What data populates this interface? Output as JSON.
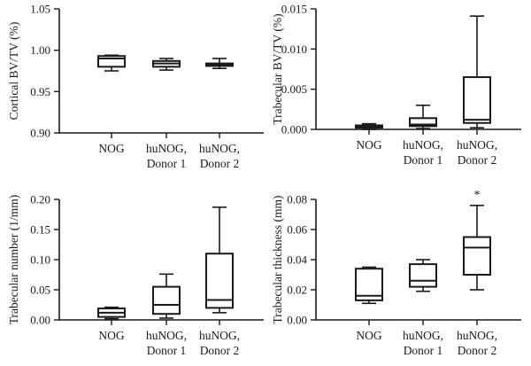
{
  "chart_data": [
    {
      "type": "box",
      "ylabel": "Cortical BV/TV (%)",
      "ylim": [
        0.9,
        1.05
      ],
      "yticks": [
        "0.90",
        "0.95",
        "1.00",
        "1.05"
      ],
      "ytick_values": [
        0.9,
        0.95,
        1.0,
        1.05
      ],
      "categories": [
        [
          "NOG"
        ],
        [
          "huNOG,",
          "Donor 1"
        ],
        [
          "huNOG,",
          "Donor 2"
        ]
      ],
      "boxes": [
        {
          "min": 0.975,
          "q1": 0.98,
          "median": 0.99,
          "q3": 0.993,
          "max": 0.994
        },
        {
          "min": 0.976,
          "q1": 0.98,
          "median": 0.984,
          "q3": 0.987,
          "max": 0.99
        },
        {
          "min": 0.978,
          "q1": 0.981,
          "median": 0.983,
          "q3": 0.984,
          "max": 0.99
        }
      ],
      "annotations": []
    },
    {
      "type": "box",
      "ylabel": "Trabecular BV/TV (%)",
      "ylim": [
        0.0,
        0.015
      ],
      "yticks": [
        "0.000",
        "0.005",
        "0.010",
        "0.015"
      ],
      "ytick_values": [
        0.0,
        0.005,
        0.01,
        0.015
      ],
      "categories": [
        [
          "NOG"
        ],
        [
          "huNOG,",
          "Donor 1"
        ],
        [
          "huNOG,",
          "Donor 2"
        ]
      ],
      "boxes": [
        {
          "min": 0.0,
          "q1": 0.0002,
          "median": 0.0003,
          "q3": 0.0005,
          "max": 0.0007
        },
        {
          "min": 0.0001,
          "q1": 0.0004,
          "median": 0.0006,
          "q3": 0.0014,
          "max": 0.003
        },
        {
          "min": 0.0002,
          "q1": 0.0008,
          "median": 0.0012,
          "q3": 0.0065,
          "max": 0.0141
        }
      ],
      "annotations": []
    },
    {
      "type": "box",
      "ylabel": "Trabecular number (1/mm)",
      "ylim": [
        0.0,
        0.2
      ],
      "yticks": [
        "0.00",
        "0.05",
        "0.10",
        "0.15",
        "0.20"
      ],
      "ytick_values": [
        0.0,
        0.05,
        0.1,
        0.15,
        0.2
      ],
      "categories": [
        [
          "NOG"
        ],
        [
          "huNOG,",
          "Donor 1"
        ],
        [
          "huNOG,",
          "Donor 2"
        ]
      ],
      "boxes": [
        {
          "min": 0.002,
          "q1": 0.005,
          "median": 0.012,
          "q3": 0.019,
          "max": 0.021
        },
        {
          "min": 0.003,
          "q1": 0.01,
          "median": 0.025,
          "q3": 0.055,
          "max": 0.076
        },
        {
          "min": 0.012,
          "q1": 0.02,
          "median": 0.033,
          "q3": 0.11,
          "max": 0.187
        }
      ],
      "annotations": []
    },
    {
      "type": "box",
      "ylabel": "Trabecular thickness (mm)",
      "ylim": [
        0.0,
        0.08
      ],
      "yticks": [
        "0.00",
        "0.02",
        "0.04",
        "0.06",
        "0.08"
      ],
      "ytick_values": [
        0.0,
        0.02,
        0.04,
        0.06,
        0.08
      ],
      "categories": [
        [
          "NOG"
        ],
        [
          "huNOG,",
          "Donor 1"
        ],
        [
          "huNOG,",
          "Donor 2"
        ]
      ],
      "boxes": [
        {
          "min": 0.011,
          "q1": 0.013,
          "median": 0.016,
          "q3": 0.034,
          "max": 0.035
        },
        {
          "min": 0.019,
          "q1": 0.022,
          "median": 0.026,
          "q3": 0.037,
          "max": 0.04
        },
        {
          "min": 0.02,
          "q1": 0.03,
          "median": 0.048,
          "q3": 0.055,
          "max": 0.076
        }
      ],
      "annotations": [
        {
          "category_index": 2,
          "text": "*"
        }
      ]
    }
  ]
}
